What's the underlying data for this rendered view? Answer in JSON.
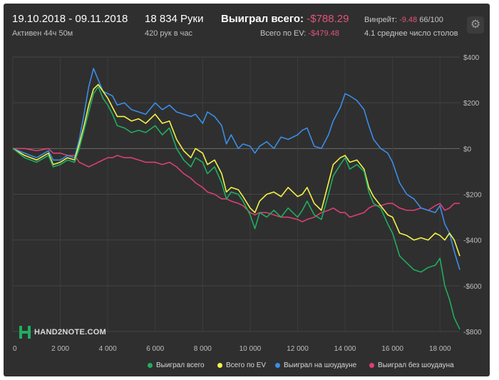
{
  "header": {
    "date_range": "19.10.2018 - 09.11.2018",
    "active_time": "Активен 44ч 50м",
    "hands": "18 834 Руки",
    "hands_per_hour": "420 рук в час",
    "won_total_label": "Выиграл всего:",
    "won_total_value": "-$788.29",
    "ev_total_label": "Всего по EV:",
    "ev_total_value": "-$479.48",
    "winrate_label": "Винрейт:",
    "winrate_value": "-9.48",
    "winrate_suffix": "66/100",
    "avg_tables": "4.1 среднее число столов"
  },
  "logo": {
    "text": "HAND2NOTE.COM"
  },
  "colors": {
    "won_total": "#1fae60",
    "ev_total": "#f2f24a",
    "showdown": "#3a8ee8",
    "non_showdown": "#dd3f72",
    "background": "#2f2f2f",
    "negative": "#e2537a"
  },
  "chart_data": {
    "type": "line",
    "xlim": [
      0,
      18834
    ],
    "ylim": [
      -800,
      400
    ],
    "grid": true,
    "legend_placement": "bottom-right",
    "x_ticks": [
      {
        "value": 0,
        "label": "0"
      },
      {
        "value": 2000,
        "label": "2 000"
      },
      {
        "value": 4000,
        "label": "4 000"
      },
      {
        "value": 6000,
        "label": "6 000"
      },
      {
        "value": 8000,
        "label": "8 000"
      },
      {
        "value": 10000,
        "label": "10 000"
      },
      {
        "value": 12000,
        "label": "12 000"
      },
      {
        "value": 14000,
        "label": "14 000"
      },
      {
        "value": 16000,
        "label": "16 000"
      },
      {
        "value": 18000,
        "label": "18 000"
      }
    ],
    "y_ticks": [
      {
        "value": 400,
        "label": "$400"
      },
      {
        "value": 200,
        "label": "$200"
      },
      {
        "value": 0,
        "label": "$0"
      },
      {
        "value": -200,
        "label": "-$200"
      },
      {
        "value": -400,
        "label": "-$400"
      },
      {
        "value": -600,
        "label": "-$600"
      },
      {
        "value": -800,
        "label": "-$800"
      }
    ],
    "series": [
      {
        "name": "Выиграл всего",
        "color_key": "won_total",
        "points": [
          [
            0,
            0
          ],
          [
            500,
            -40
          ],
          [
            1000,
            -60
          ],
          [
            1500,
            -30
          ],
          [
            1700,
            -80
          ],
          [
            2000,
            -70
          ],
          [
            2300,
            -50
          ],
          [
            2600,
            -60
          ],
          [
            2800,
            0
          ],
          [
            3000,
            80
          ],
          [
            3200,
            160
          ],
          [
            3400,
            240
          ],
          [
            3600,
            270
          ],
          [
            3800,
            220
          ],
          [
            4000,
            190
          ],
          [
            4200,
            150
          ],
          [
            4400,
            100
          ],
          [
            4700,
            90
          ],
          [
            5000,
            70
          ],
          [
            5300,
            80
          ],
          [
            5600,
            70
          ],
          [
            6000,
            100
          ],
          [
            6300,
            60
          ],
          [
            6600,
            90
          ],
          [
            6900,
            0
          ],
          [
            7200,
            -50
          ],
          [
            7500,
            -80
          ],
          [
            7700,
            -40
          ],
          [
            8000,
            -60
          ],
          [
            8200,
            -110
          ],
          [
            8500,
            -80
          ],
          [
            8800,
            -150
          ],
          [
            9000,
            -220
          ],
          [
            9200,
            -190
          ],
          [
            9500,
            -200
          ],
          [
            9700,
            -230
          ],
          [
            10000,
            -290
          ],
          [
            10200,
            -350
          ],
          [
            10400,
            -280
          ],
          [
            10700,
            -300
          ],
          [
            11000,
            -270
          ],
          [
            11300,
            -300
          ],
          [
            11600,
            -260
          ],
          [
            12000,
            -300
          ],
          [
            12200,
            -270
          ],
          [
            12400,
            -230
          ],
          [
            12700,
            -290
          ],
          [
            13000,
            -310
          ],
          [
            13300,
            -200
          ],
          [
            13500,
            -120
          ],
          [
            13800,
            -70
          ],
          [
            14000,
            -40
          ],
          [
            14200,
            -90
          ],
          [
            14500,
            -70
          ],
          [
            14800,
            -100
          ],
          [
            15000,
            -190
          ],
          [
            15200,
            -240
          ],
          [
            15500,
            -260
          ],
          [
            15800,
            -330
          ],
          [
            16000,
            -370
          ],
          [
            16300,
            -470
          ],
          [
            16600,
            -500
          ],
          [
            16900,
            -530
          ],
          [
            17200,
            -540
          ],
          [
            17500,
            -520
          ],
          [
            17800,
            -510
          ],
          [
            18000,
            -480
          ],
          [
            18200,
            -600
          ],
          [
            18400,
            -660
          ],
          [
            18600,
            -740
          ],
          [
            18834,
            -790
          ]
        ]
      },
      {
        "name": "Всего по EV",
        "color_key": "ev_total",
        "points": [
          [
            0,
            0
          ],
          [
            500,
            -30
          ],
          [
            1000,
            -50
          ],
          [
            1500,
            -20
          ],
          [
            1700,
            -70
          ],
          [
            2000,
            -60
          ],
          [
            2300,
            -40
          ],
          [
            2600,
            -50
          ],
          [
            2800,
            20
          ],
          [
            3000,
            100
          ],
          [
            3200,
            190
          ],
          [
            3400,
            260
          ],
          [
            3600,
            280
          ],
          [
            3800,
            250
          ],
          [
            4000,
            220
          ],
          [
            4200,
            180
          ],
          [
            4400,
            140
          ],
          [
            4700,
            140
          ],
          [
            5000,
            120
          ],
          [
            5300,
            130
          ],
          [
            5600,
            110
          ],
          [
            6000,
            150
          ],
          [
            6300,
            110
          ],
          [
            6600,
            120
          ],
          [
            6900,
            40
          ],
          [
            7200,
            -10
          ],
          [
            7500,
            -40
          ],
          [
            7700,
            0
          ],
          [
            8000,
            -20
          ],
          [
            8200,
            -70
          ],
          [
            8500,
            -50
          ],
          [
            8800,
            -110
          ],
          [
            9000,
            -190
          ],
          [
            9200,
            -170
          ],
          [
            9500,
            -180
          ],
          [
            9700,
            -210
          ],
          [
            10000,
            -260
          ],
          [
            10200,
            -280
          ],
          [
            10400,
            -230
          ],
          [
            10700,
            -200
          ],
          [
            11000,
            -190
          ],
          [
            11300,
            -210
          ],
          [
            11600,
            -170
          ],
          [
            12000,
            -210
          ],
          [
            12200,
            -200
          ],
          [
            12400,
            -170
          ],
          [
            12700,
            -240
          ],
          [
            13000,
            -270
          ],
          [
            13300,
            -150
          ],
          [
            13500,
            -70
          ],
          [
            13800,
            -40
          ],
          [
            14000,
            -30
          ],
          [
            14200,
            -60
          ],
          [
            14500,
            -50
          ],
          [
            14800,
            -90
          ],
          [
            15000,
            -170
          ],
          [
            15200,
            -210
          ],
          [
            15500,
            -250
          ],
          [
            15800,
            -290
          ],
          [
            16000,
            -300
          ],
          [
            16300,
            -370
          ],
          [
            16600,
            -380
          ],
          [
            16900,
            -400
          ],
          [
            17200,
            -390
          ],
          [
            17500,
            -400
          ],
          [
            17800,
            -370
          ],
          [
            18000,
            -380
          ],
          [
            18200,
            -400
          ],
          [
            18400,
            -370
          ],
          [
            18600,
            -400
          ],
          [
            18834,
            -470
          ]
        ]
      },
      {
        "name": "Выиграл на шоудауне",
        "color_key": "showdown",
        "points": [
          [
            0,
            0
          ],
          [
            500,
            -20
          ],
          [
            1000,
            -40
          ],
          [
            1500,
            -10
          ],
          [
            1700,
            -50
          ],
          [
            2000,
            -50
          ],
          [
            2300,
            -30
          ],
          [
            2600,
            -40
          ],
          [
            2800,
            40
          ],
          [
            3000,
            150
          ],
          [
            3200,
            270
          ],
          [
            3400,
            350
          ],
          [
            3600,
            300
          ],
          [
            3800,
            250
          ],
          [
            4000,
            240
          ],
          [
            4200,
            230
          ],
          [
            4400,
            190
          ],
          [
            4700,
            200
          ],
          [
            5000,
            170
          ],
          [
            5300,
            160
          ],
          [
            5600,
            150
          ],
          [
            6000,
            200
          ],
          [
            6300,
            170
          ],
          [
            6600,
            190
          ],
          [
            6900,
            160
          ],
          [
            7200,
            150
          ],
          [
            7500,
            140
          ],
          [
            7700,
            150
          ],
          [
            8000,
            110
          ],
          [
            8200,
            160
          ],
          [
            8500,
            140
          ],
          [
            8800,
            100
          ],
          [
            9000,
            20
          ],
          [
            9200,
            60
          ],
          [
            9500,
            0
          ],
          [
            9700,
            20
          ],
          [
            10000,
            10
          ],
          [
            10200,
            -20
          ],
          [
            10400,
            10
          ],
          [
            10700,
            30
          ],
          [
            11000,
            0
          ],
          [
            11300,
            50
          ],
          [
            11600,
            40
          ],
          [
            12000,
            60
          ],
          [
            12200,
            80
          ],
          [
            12400,
            90
          ],
          [
            12700,
            10
          ],
          [
            13000,
            0
          ],
          [
            13300,
            60
          ],
          [
            13500,
            120
          ],
          [
            13800,
            180
          ],
          [
            14000,
            240
          ],
          [
            14200,
            230
          ],
          [
            14500,
            210
          ],
          [
            14800,
            170
          ],
          [
            15000,
            100
          ],
          [
            15200,
            40
          ],
          [
            15500,
            0
          ],
          [
            15800,
            -20
          ],
          [
            16000,
            -60
          ],
          [
            16300,
            -150
          ],
          [
            16600,
            -200
          ],
          [
            16900,
            -220
          ],
          [
            17200,
            -260
          ],
          [
            17500,
            -270
          ],
          [
            17800,
            -280
          ],
          [
            18000,
            -250
          ],
          [
            18200,
            -330
          ],
          [
            18400,
            -370
          ],
          [
            18600,
            -450
          ],
          [
            18834,
            -530
          ]
        ]
      },
      {
        "name": "Выиграл без шоудауна",
        "color_key": "non_showdown",
        "points": [
          [
            0,
            0
          ],
          [
            500,
            0
          ],
          [
            1000,
            -10
          ],
          [
            1500,
            0
          ],
          [
            1700,
            -20
          ],
          [
            2000,
            -20
          ],
          [
            2300,
            -30
          ],
          [
            2600,
            -30
          ],
          [
            2800,
            -60
          ],
          [
            3000,
            -70
          ],
          [
            3200,
            -80
          ],
          [
            3400,
            -70
          ],
          [
            3600,
            -60
          ],
          [
            3800,
            -50
          ],
          [
            4000,
            -40
          ],
          [
            4200,
            -40
          ],
          [
            4400,
            -30
          ],
          [
            4700,
            -40
          ],
          [
            5000,
            -40
          ],
          [
            5300,
            -50
          ],
          [
            5600,
            -60
          ],
          [
            6000,
            -60
          ],
          [
            6300,
            -70
          ],
          [
            6600,
            -60
          ],
          [
            6900,
            -80
          ],
          [
            7200,
            -110
          ],
          [
            7500,
            -130
          ],
          [
            7700,
            -150
          ],
          [
            8000,
            -170
          ],
          [
            8200,
            -190
          ],
          [
            8500,
            -200
          ],
          [
            8800,
            -220
          ],
          [
            9000,
            -220
          ],
          [
            9200,
            -230
          ],
          [
            9500,
            -240
          ],
          [
            9700,
            -250
          ],
          [
            10000,
            -280
          ],
          [
            10200,
            -290
          ],
          [
            10400,
            -280
          ],
          [
            10700,
            -280
          ],
          [
            11000,
            -290
          ],
          [
            11300,
            -300
          ],
          [
            11600,
            -300
          ],
          [
            12000,
            -310
          ],
          [
            12200,
            -320
          ],
          [
            12400,
            -310
          ],
          [
            12700,
            -300
          ],
          [
            13000,
            -280
          ],
          [
            13300,
            -270
          ],
          [
            13500,
            -260
          ],
          [
            13800,
            -280
          ],
          [
            14000,
            -280
          ],
          [
            14200,
            -300
          ],
          [
            14500,
            -290
          ],
          [
            14800,
            -280
          ],
          [
            15000,
            -260
          ],
          [
            15200,
            -250
          ],
          [
            15500,
            -250
          ],
          [
            15800,
            -240
          ],
          [
            16000,
            -240
          ],
          [
            16300,
            -260
          ],
          [
            16600,
            -270
          ],
          [
            16900,
            -270
          ],
          [
            17200,
            -260
          ],
          [
            17500,
            -270
          ],
          [
            17800,
            -250
          ],
          [
            18000,
            -240
          ],
          [
            18200,
            -270
          ],
          [
            18400,
            -260
          ],
          [
            18600,
            -240
          ],
          [
            18834,
            -240
          ]
        ]
      }
    ]
  }
}
